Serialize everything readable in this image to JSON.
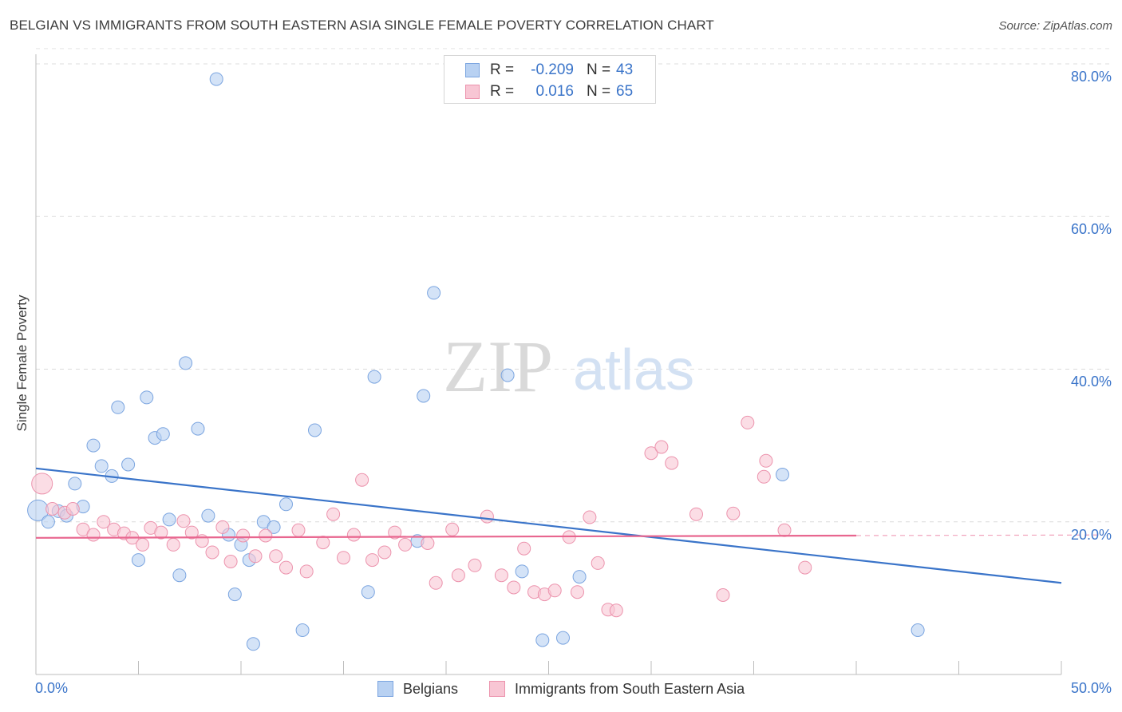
{
  "title": "BELGIAN VS IMMIGRANTS FROM SOUTH EASTERN ASIA SINGLE FEMALE POVERTY CORRELATION CHART",
  "source": "Source: ZipAtlas.com",
  "watermark": {
    "zip": "ZIP",
    "atlas": "atlas"
  },
  "stats": [
    {
      "r_label": "R =",
      "r_value": "-0.209",
      "n_label": "N =",
      "n_value": "43",
      "fill": "#b8d1f2",
      "stroke": "#7ba5e0"
    },
    {
      "r_label": "R =",
      "r_value": "0.016",
      "n_label": "N =",
      "n_value": "65",
      "fill": "#f8c6d4",
      "stroke": "#ec93ad"
    }
  ],
  "legend": [
    {
      "label": "Belgians",
      "fill": "#b8d1f2",
      "stroke": "#7ba5e0"
    },
    {
      "label": "Immigrants from South Eastern Asia",
      "fill": "#f8c6d4",
      "stroke": "#ec93ad"
    }
  ],
  "axis_labels": {
    "x_min": "0.0%",
    "x_max": "50.0%",
    "y_ticks": [
      "20.0%",
      "40.0%",
      "60.0%",
      "80.0%"
    ]
  },
  "chart_data": {
    "type": "scatter",
    "title": "BELGIAN VS IMMIGRANTS FROM SOUTH EASTERN ASIA SINGLE FEMALE POVERTY CORRELATION CHART",
    "xlabel": "",
    "ylabel": "Single Female Poverty",
    "xlim": [
      0,
      50
    ],
    "ylim": [
      0,
      82
    ],
    "y_ticks": [
      20,
      40,
      60,
      80
    ],
    "grid": "horizontal dashed",
    "legend_position": "bottom-center",
    "colors": {
      "belgians": "#3a74c9",
      "immigrants": "#e8668f"
    },
    "series": [
      {
        "name": "Belgians",
        "color": "#7ba5e0",
        "points": [
          [
            0.1,
            21.5
          ],
          [
            0.6,
            20.0
          ],
          [
            1.1,
            21.4
          ],
          [
            1.5,
            20.8
          ],
          [
            1.9,
            25.0
          ],
          [
            2.3,
            22.0
          ],
          [
            2.8,
            30.0
          ],
          [
            3.2,
            27.3
          ],
          [
            3.7,
            26.0
          ],
          [
            4.0,
            35.0
          ],
          [
            4.5,
            27.5
          ],
          [
            5.0,
            15.0
          ],
          [
            5.4,
            36.3
          ],
          [
            5.8,
            31.0
          ],
          [
            6.2,
            31.5
          ],
          [
            6.5,
            20.3
          ],
          [
            7.0,
            13.0
          ],
          [
            7.3,
            40.8
          ],
          [
            7.9,
            32.2
          ],
          [
            8.4,
            20.8
          ],
          [
            8.8,
            78.0
          ],
          [
            9.4,
            18.3
          ],
          [
            9.7,
            10.5
          ],
          [
            10.0,
            17.0
          ],
          [
            10.4,
            15.0
          ],
          [
            10.6,
            4.0
          ],
          [
            11.1,
            20.0
          ],
          [
            11.6,
            19.3
          ],
          [
            12.2,
            22.3
          ],
          [
            13.0,
            5.8
          ],
          [
            13.6,
            32.0
          ],
          [
            16.2,
            10.8
          ],
          [
            16.5,
            39.0
          ],
          [
            18.6,
            17.5
          ],
          [
            18.9,
            36.5
          ],
          [
            19.4,
            50.0
          ],
          [
            23.0,
            39.2
          ],
          [
            23.7,
            13.5
          ],
          [
            24.7,
            4.5
          ],
          [
            25.7,
            4.8
          ],
          [
            26.5,
            12.8
          ],
          [
            36.4,
            26.2
          ],
          [
            43.0,
            5.8
          ]
        ]
      },
      {
        "name": "Immigrants from South Eastern Asia",
        "color": "#ec93ad",
        "points": [
          [
            0.3,
            25.0
          ],
          [
            0.8,
            21.7
          ],
          [
            1.4,
            21.2
          ],
          [
            1.8,
            21.7
          ],
          [
            2.3,
            19.0
          ],
          [
            2.8,
            18.3
          ],
          [
            3.3,
            20.0
          ],
          [
            3.8,
            19.0
          ],
          [
            4.3,
            18.5
          ],
          [
            4.7,
            17.9
          ],
          [
            5.2,
            17.0
          ],
          [
            5.6,
            19.2
          ],
          [
            6.1,
            18.6
          ],
          [
            6.7,
            17.0
          ],
          [
            7.2,
            20.1
          ],
          [
            7.6,
            18.6
          ],
          [
            8.1,
            17.5
          ],
          [
            8.6,
            16.0
          ],
          [
            9.1,
            19.3
          ],
          [
            9.5,
            14.8
          ],
          [
            10.1,
            18.2
          ],
          [
            10.7,
            15.5
          ],
          [
            11.2,
            18.2
          ],
          [
            11.7,
            15.5
          ],
          [
            12.2,
            14.0
          ],
          [
            12.8,
            18.9
          ],
          [
            13.2,
            13.5
          ],
          [
            14.0,
            17.3
          ],
          [
            14.5,
            21.0
          ],
          [
            15.0,
            15.3
          ],
          [
            15.5,
            18.3
          ],
          [
            15.9,
            25.5
          ],
          [
            16.4,
            15.0
          ],
          [
            17.0,
            16.0
          ],
          [
            17.5,
            18.6
          ],
          [
            18.0,
            17.0
          ],
          [
            19.1,
            17.2
          ],
          [
            19.5,
            12.0
          ],
          [
            20.3,
            19.0
          ],
          [
            20.6,
            13.0
          ],
          [
            21.4,
            14.3
          ],
          [
            22.0,
            20.7
          ],
          [
            22.7,
            13.0
          ],
          [
            23.3,
            11.4
          ],
          [
            23.8,
            16.5
          ],
          [
            24.3,
            10.8
          ],
          [
            24.8,
            10.5
          ],
          [
            25.3,
            11.0
          ],
          [
            26.0,
            18.0
          ],
          [
            26.4,
            10.8
          ],
          [
            27.0,
            20.6
          ],
          [
            27.4,
            14.6
          ],
          [
            27.9,
            8.5
          ],
          [
            28.3,
            8.4
          ],
          [
            30.0,
            29.0
          ],
          [
            30.5,
            29.8
          ],
          [
            31.0,
            27.7
          ],
          [
            32.2,
            21.0
          ],
          [
            33.5,
            10.4
          ],
          [
            34.0,
            21.1
          ],
          [
            34.7,
            33.0
          ],
          [
            35.5,
            25.9
          ],
          [
            35.6,
            28.0
          ],
          [
            36.5,
            18.9
          ],
          [
            37.5,
            14.0
          ]
        ]
      }
    ],
    "trendlines": [
      {
        "series": "Belgians",
        "x": [
          0,
          50
        ],
        "y": [
          27.0,
          12.0
        ],
        "color": "#3a74c9"
      },
      {
        "series": "Immigrants from South Eastern Asia",
        "x": [
          0,
          40
        ],
        "y": [
          17.9,
          18.2
        ],
        "color": "#e8668f",
        "dashed_extension_to": 50
      }
    ]
  }
}
